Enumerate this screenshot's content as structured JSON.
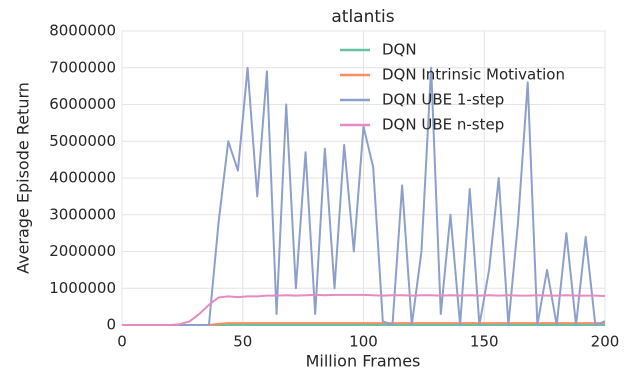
{
  "chart_data": {
    "type": "line",
    "title": "atlantis",
    "x_label": "Million Frames",
    "y_label": "Average Episode Return",
    "x": [
      0,
      4,
      8,
      12,
      16,
      20,
      24,
      28,
      32,
      36,
      40,
      44,
      48,
      52,
      56,
      60,
      64,
      68,
      72,
      76,
      80,
      84,
      88,
      92,
      96,
      100,
      104,
      108,
      112,
      116,
      120,
      124,
      128,
      132,
      136,
      140,
      144,
      148,
      152,
      156,
      160,
      164,
      168,
      172,
      176,
      180,
      184,
      188,
      192,
      196,
      200
    ],
    "series": [
      {
        "name": "DQN",
        "color": "#66c2a5",
        "values": [
          0,
          0,
          0,
          0,
          0,
          0,
          0,
          0,
          0,
          0,
          0,
          0,
          0,
          0,
          0,
          0,
          0,
          0,
          0,
          0,
          0,
          0,
          0,
          0,
          0,
          0,
          0,
          0,
          0,
          0,
          0,
          0,
          0,
          0,
          0,
          0,
          0,
          0,
          0,
          0,
          0,
          0,
          0,
          0,
          0,
          0,
          0,
          0,
          0,
          0,
          0
        ]
      },
      {
        "name": "DQN Intrinsic Motivation",
        "color": "#fc8d62",
        "values": [
          0,
          0,
          0,
          0,
          0,
          0,
          0,
          0,
          0,
          0,
          30000,
          50000,
          50000,
          50000,
          50000,
          50000,
          50000,
          50000,
          50000,
          50000,
          50000,
          50000,
          50000,
          50000,
          50000,
          50000,
          50000,
          50000,
          50000,
          50000,
          50000,
          50000,
          50000,
          50000,
          50000,
          50000,
          50000,
          50000,
          50000,
          50000,
          50000,
          50000,
          50000,
          50000,
          50000,
          50000,
          50000,
          50000,
          50000,
          50000,
          50000
        ]
      },
      {
        "name": "DQN UBE 1-step",
        "color": "#8da0cb",
        "values": [
          0,
          0,
          0,
          0,
          0,
          0,
          0,
          0,
          0,
          0,
          2800000,
          5000000,
          4200000,
          7000000,
          3500000,
          6900000,
          300000,
          6000000,
          1000000,
          4700000,
          300000,
          4800000,
          1000000,
          4900000,
          2000000,
          5400000,
          4300000,
          100000,
          0,
          3800000,
          0,
          2000000,
          7000000,
          300000,
          3000000,
          0,
          3700000,
          0,
          1500000,
          4000000,
          0,
          2800000,
          6600000,
          0,
          1500000,
          0,
          2500000,
          0,
          2400000,
          0,
          100000
        ]
      },
      {
        "name": "DQN UBE n-step",
        "color": "#e78ac3",
        "values": [
          0,
          0,
          0,
          0,
          0,
          0,
          20000,
          100000,
          300000,
          550000,
          750000,
          780000,
          760000,
          780000,
          780000,
          800000,
          800000,
          810000,
          800000,
          810000,
          820000,
          810000,
          820000,
          820000,
          820000,
          820000,
          810000,
          800000,
          810000,
          810000,
          800000,
          810000,
          810000,
          800000,
          810000,
          800000,
          810000,
          800000,
          810000,
          800000,
          810000,
          800000,
          800000,
          810000,
          800000,
          800000,
          810000,
          800000,
          800000,
          800000,
          790000
        ]
      }
    ],
    "xlim": [
      0,
      200
    ],
    "xticks": [
      0,
      50,
      100,
      150,
      200
    ],
    "ylim": [
      0,
      8000000
    ],
    "yticks": [
      0,
      1000000,
      2000000,
      3000000,
      4000000,
      5000000,
      6000000,
      7000000,
      8000000
    ],
    "grid": true,
    "legend": "upper center"
  }
}
